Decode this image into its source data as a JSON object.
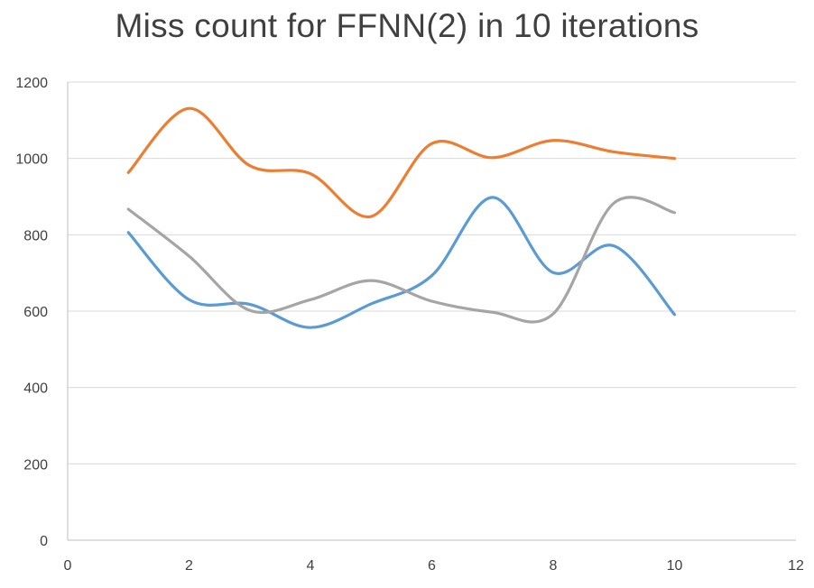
{
  "chart_data": {
    "type": "line",
    "title": "Miss count for FFNN(2) in 10 iterations",
    "xlabel": "",
    "ylabel": "",
    "xlim": [
      0,
      12
    ],
    "ylim": [
      0,
      1200
    ],
    "x_ticks": [
      0,
      2,
      4,
      6,
      8,
      10,
      12
    ],
    "y_ticks": [
      0,
      200,
      400,
      600,
      800,
      1000,
      1200
    ],
    "grid": "horizontal",
    "smooth": true,
    "x": [
      1,
      2,
      3,
      4,
      5,
      6,
      7,
      8,
      9,
      10
    ],
    "series": [
      {
        "color": "#5b9bd5",
        "values": [
          806,
          630,
          618,
          557,
          619,
          693,
          898,
          701,
          771,
          591
        ]
      },
      {
        "color": "#ed7d31",
        "values": [
          963,
          1131,
          981,
          960,
          848,
          1039,
          1002,
          1047,
          1017,
          1000
        ]
      },
      {
        "color": "#a5a5a5",
        "values": [
          867,
          744,
          602,
          630,
          680,
          626,
          597,
          593,
          883,
          858
        ]
      }
    ]
  }
}
